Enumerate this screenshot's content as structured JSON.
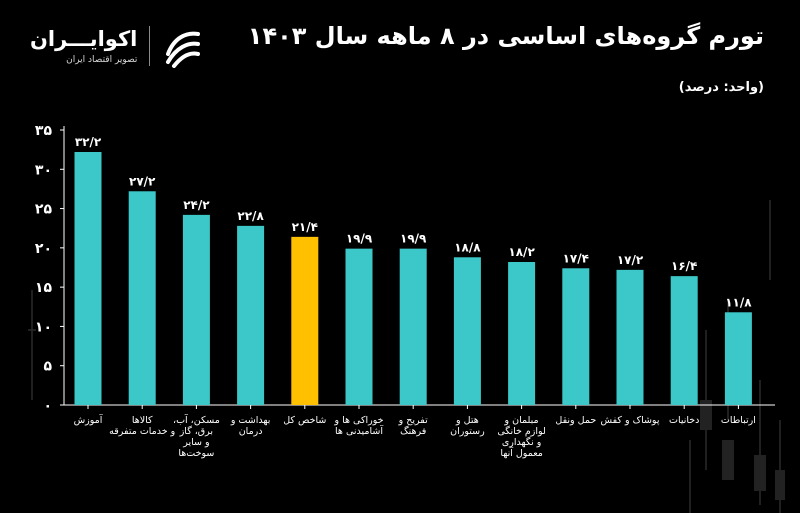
{
  "header": {
    "title": "تورم گروه‌های اساسی در ۸ ماهه سال ۱۴۰۳",
    "unit": "(واحد: درصد)"
  },
  "logo": {
    "name": "اکوایـــران",
    "tagline": "تصویر اقتصاد ایران"
  },
  "colors": {
    "background": "#000000",
    "bar": "#3cc8c8",
    "highlight": "#ffc000",
    "text": "#ffffff",
    "axis": "#ffffff"
  },
  "chart_data": {
    "type": "bar",
    "title": "تورم گروه‌های اساسی در ۸ ماهه سال ۱۴۰۳",
    "ylabel": "",
    "xlabel": "",
    "ylim": [
      0,
      35
    ],
    "yticks": [
      0,
      5,
      10,
      15,
      20,
      25,
      30,
      35
    ],
    "ytick_labels": [
      "۰",
      "۵",
      "۱۰",
      "۱۵",
      "۲۰",
      "۲۵",
      "۳۰",
      "۳۵"
    ],
    "grid": false,
    "categories": [
      [
        "آموزش"
      ],
      [
        "کالاها",
        "و خدمات متفرقه"
      ],
      [
        "مسکن، آب،",
        "برق، گاز",
        "و سایر",
        "سوخت‌ها"
      ],
      [
        "بهداشت و",
        "درمان"
      ],
      [
        "شاخص کل"
      ],
      [
        "خوراکی ها و",
        "آشامیدنی ها"
      ],
      [
        "تفریح و",
        "فرهنگ"
      ],
      [
        "هتل و",
        "رستوران"
      ],
      [
        "مبلمان و",
        "لوازم خانگی",
        "و نگهداری",
        "معمول آنها"
      ],
      [
        "حمل ونقل"
      ],
      [
        "پوشاک و کفش"
      ],
      [
        "دخانیات"
      ],
      [
        "ارتباطات"
      ]
    ],
    "values": [
      32.2,
      27.2,
      24.2,
      22.8,
      21.4,
      19.9,
      19.9,
      18.8,
      18.2,
      17.4,
      17.2,
      16.4,
      11.8
    ],
    "value_labels": [
      "۳۲/۲",
      "۲۷/۲",
      "۲۴/۲",
      "۲۲/۸",
      "۲۱/۴",
      "۱۹/۹",
      "۱۹/۹",
      "۱۸/۸",
      "۱۸/۲",
      "۱۷/۴",
      "۱۷/۲",
      "۱۶/۴",
      "۱۱/۸"
    ],
    "highlight_index": 4
  }
}
